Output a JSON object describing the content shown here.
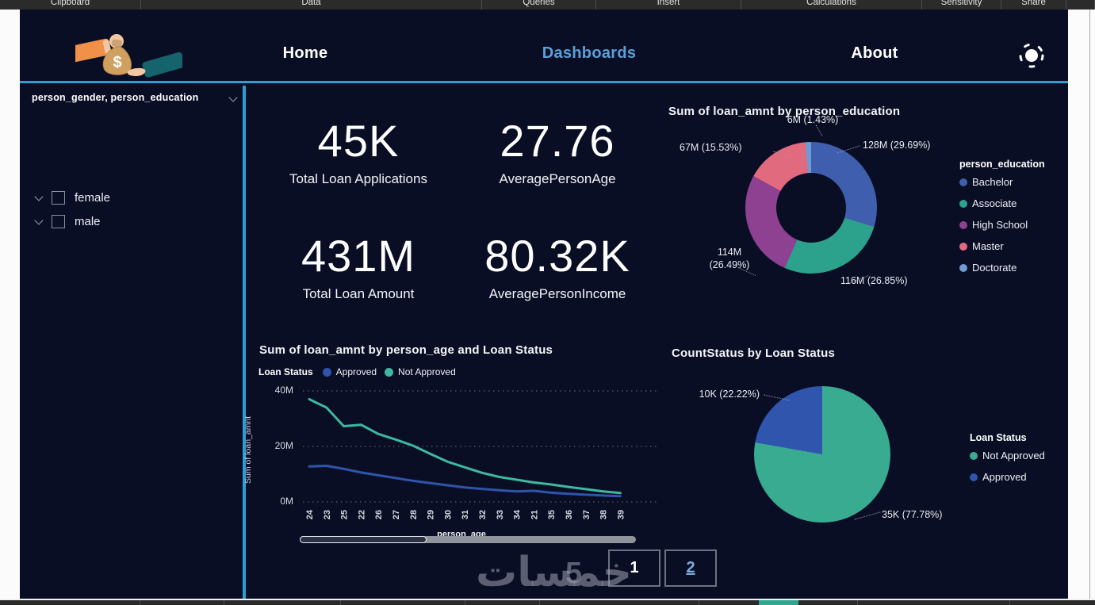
{
  "ribbon": {
    "groups": [
      "Clipboard",
      "Data",
      "Queries",
      "Insert",
      "Calculations",
      "Sensitivity",
      "Share"
    ]
  },
  "nav": {
    "items": [
      {
        "label": "Home"
      },
      {
        "label": "Dashboards"
      },
      {
        "label": "About"
      }
    ],
    "active": "Dashboards",
    "logo": "money-handoff-logo",
    "theme_icon": "sun-icon"
  },
  "slicer": {
    "title": "person_gender, person_education",
    "options": [
      {
        "label": "female",
        "checked": false
      },
      {
        "label": "male",
        "checked": false
      }
    ]
  },
  "kpis": [
    {
      "value": "45K",
      "label": "Total Loan Applications"
    },
    {
      "value": "27.76",
      "label": "AveragePersonAge"
    },
    {
      "value": "431M",
      "label": "Total Loan Amount"
    },
    {
      "value": "80.32K",
      "label": "AveragePersonIncome"
    }
  ],
  "chart_data": [
    {
      "type": "pie",
      "variant": "donut",
      "title": "Sum of loan_amnt by person_education",
      "legend_title": "person_education",
      "legend_position": "right",
      "slices": [
        {
          "label": "Bachelor",
          "value": "128M",
          "pct": 29.69,
          "callout": "128M (29.69%)",
          "color": "#3f5fae"
        },
        {
          "label": "Associate",
          "value": "116M",
          "pct": 26.85,
          "callout": "116M (26.85%)",
          "color": "#2ca28c"
        },
        {
          "label": "High School",
          "value": "114M",
          "pct": 26.49,
          "callout": "114M (26.49%)",
          "color": "#8d4190"
        },
        {
          "label": "Master",
          "value": "67M",
          "pct": 15.53,
          "callout": "67M (15.53%)",
          "color": "#e26a7e"
        },
        {
          "label": "Doctorate",
          "value": "6M",
          "pct": 1.43,
          "callout": "6M (1.43%)",
          "color": "#6f9ad2"
        }
      ]
    },
    {
      "type": "line",
      "title": "Sum of loan_amnt by person_age and Loan Status",
      "legend_title": "Loan Status",
      "legend_position": "top",
      "xlabel": "person_age",
      "ylabel": "Sum of loan_amnt",
      "ylim": [
        0,
        40000000
      ],
      "yticks": [
        "40M",
        "20M",
        "0M"
      ],
      "grid": true,
      "categories": [
        "24",
        "23",
        "25",
        "22",
        "26",
        "27",
        "28",
        "29",
        "30",
        "31",
        "32",
        "33",
        "34",
        "21",
        "35",
        "36",
        "37",
        "38",
        "39"
      ],
      "series": [
        {
          "name": "Approved",
          "color": "#2f54ab",
          "values_millions": [
            12.8,
            13,
            11.9,
            10.6,
            9.6,
            8.6,
            7.6,
            6.8,
            6,
            5.2,
            4.7,
            4.2,
            3.8,
            4,
            3.3,
            2.9,
            2.6,
            2.3,
            2.1
          ]
        },
        {
          "name": "Not Approved",
          "color": "#3cb9a0",
          "values_millions": [
            37,
            34,
            27.3,
            27.8,
            24.5,
            22.5,
            20.3,
            17.3,
            14.5,
            12.5,
            10.5,
            9,
            8,
            7,
            6.3,
            5.4,
            4.6,
            3.8,
            3.2
          ]
        }
      ]
    },
    {
      "type": "pie",
      "title": "CountStatus by Loan Status",
      "legend_title": "Loan Status",
      "legend_position": "right",
      "slices": [
        {
          "label": "Not Approved",
          "value": "35K",
          "pct": 77.78,
          "callout": "35K (77.78%)",
          "color": "#39ab91"
        },
        {
          "label": "Approved",
          "value": "10K",
          "pct": 22.22,
          "callout": "10K (22.22%)",
          "color": "#2f55ad"
        }
      ]
    }
  ],
  "pagination": {
    "pages": [
      {
        "label": "1",
        "current": true
      },
      {
        "label": "2",
        "current": false
      }
    ]
  },
  "watermark": {
    "text": "خمسات",
    "digit": "5"
  },
  "colors": {
    "background": "#0a0e25",
    "accent_cyan": "#2d9dd6",
    "nav_active": "#59a0d8",
    "taskbar_teal": "#2fa78f"
  }
}
